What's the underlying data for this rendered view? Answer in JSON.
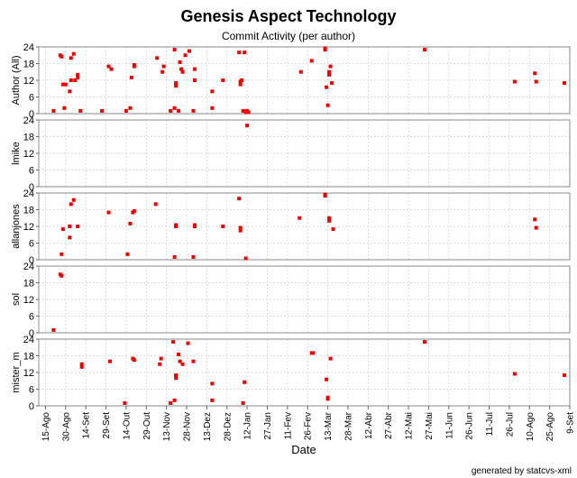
{
  "chart_data": {
    "type": "scatter",
    "title": "Genesis Aspect Technology",
    "subtitle": "Commit Activity (per author)",
    "xlabel": "Date",
    "footer": "generated by statcvs-xml",
    "x_range_days": [
      -5,
      390
    ],
    "x_ticks": [
      {
        "day": 0,
        "label": "15-Ago"
      },
      {
        "day": 15,
        "label": "30-Ago"
      },
      {
        "day": 30,
        "label": "14-Set"
      },
      {
        "day": 45,
        "label": "29-Set"
      },
      {
        "day": 60,
        "label": "14-Out"
      },
      {
        "day": 75,
        "label": "29-Out"
      },
      {
        "day": 90,
        "label": "13-Nov"
      },
      {
        "day": 105,
        "label": "28-Nov"
      },
      {
        "day": 120,
        "label": "13-Dez"
      },
      {
        "day": 135,
        "label": "28-Dez"
      },
      {
        "day": 150,
        "label": "12-Jan"
      },
      {
        "day": 165,
        "label": "27-Jan"
      },
      {
        "day": 180,
        "label": "11-Fev"
      },
      {
        "day": 195,
        "label": "26-Fev"
      },
      {
        "day": 210,
        "label": "13-Mar"
      },
      {
        "day": 225,
        "label": "28-Mar"
      },
      {
        "day": 240,
        "label": "12-Abr"
      },
      {
        "day": 255,
        "label": "27-Abr"
      },
      {
        "day": 270,
        "label": "12-Mai"
      },
      {
        "day": 285,
        "label": "27-Mai"
      },
      {
        "day": 300,
        "label": "11-Jun"
      },
      {
        "day": 315,
        "label": "26-Jun"
      },
      {
        "day": 330,
        "label": "11-Jul"
      },
      {
        "day": 345,
        "label": "26-Jul"
      },
      {
        "day": 360,
        "label": "10-Ago"
      },
      {
        "day": 375,
        "label": "25-Ago"
      },
      {
        "day": 390,
        "label": "9-Set"
      }
    ],
    "y_range": [
      0,
      24
    ],
    "y_ticks": [
      "0",
      "6",
      "12",
      "18",
      "24"
    ],
    "grid": true,
    "point_color": "#ee0000",
    "series": [
      {
        "name": "Author (All)",
        "points": [
          [
            6,
            1
          ],
          [
            11,
            21
          ],
          [
            12,
            20.5
          ],
          [
            13,
            10.5
          ],
          [
            14,
            2
          ],
          [
            15,
            10.5
          ],
          [
            18,
            8
          ],
          [
            19,
            12
          ],
          [
            19,
            20
          ],
          [
            21,
            21.5
          ],
          [
            22,
            12
          ],
          [
            24,
            13
          ],
          [
            24,
            14
          ],
          [
            26,
            1
          ],
          [
            42,
            1
          ],
          [
            47,
            17
          ],
          [
            49,
            16
          ],
          [
            60,
            1
          ],
          [
            63,
            2
          ],
          [
            64,
            13
          ],
          [
            66,
            17
          ],
          [
            66,
            17.5
          ],
          [
            83,
            20
          ],
          [
            87,
            15
          ],
          [
            88,
            17
          ],
          [
            93,
            1
          ],
          [
            96,
            23
          ],
          [
            96,
            2
          ],
          [
            97,
            10
          ],
          [
            97,
            11
          ],
          [
            99,
            1
          ],
          [
            100,
            18.5
          ],
          [
            101,
            16
          ],
          [
            102,
            15
          ],
          [
            104,
            21
          ],
          [
            107,
            22.5
          ],
          [
            110,
            1
          ],
          [
            111,
            12
          ],
          [
            111,
            16
          ],
          [
            124,
            8
          ],
          [
            124,
            2
          ],
          [
            132,
            12
          ],
          [
            144,
            22
          ],
          [
            145,
            10.5
          ],
          [
            145,
            11.5
          ],
          [
            146,
            12
          ],
          [
            147,
            1
          ],
          [
            148,
            22
          ],
          [
            149,
            0.5
          ],
          [
            150,
            1
          ],
          [
            151,
            0.5
          ],
          [
            190,
            15
          ],
          [
            198,
            19
          ],
          [
            208,
            23
          ],
          [
            208,
            23.5
          ],
          [
            209,
            9.5
          ],
          [
            210,
            3
          ],
          [
            211,
            14
          ],
          [
            211,
            15
          ],
          [
            212,
            17
          ],
          [
            213,
            11
          ],
          [
            282,
            23
          ],
          [
            349,
            11.5
          ],
          [
            364,
            14.5
          ],
          [
            365,
            11.5
          ],
          [
            386,
            11
          ]
        ]
      },
      {
        "name": "lmike",
        "points": [
          [
            150,
            22
          ]
        ]
      },
      {
        "name": "allanjones",
        "points": [
          [
            12,
            2
          ],
          [
            13,
            11
          ],
          [
            18,
            8
          ],
          [
            18,
            12
          ],
          [
            19,
            20
          ],
          [
            21,
            21.5
          ],
          [
            24,
            12
          ],
          [
            47,
            17
          ],
          [
            61,
            2
          ],
          [
            63,
            13
          ],
          [
            65,
            17
          ],
          [
            66,
            17.5
          ],
          [
            82,
            20
          ],
          [
            96,
            1
          ],
          [
            97,
            12
          ],
          [
            97,
            12.5
          ],
          [
            110,
            1
          ],
          [
            111,
            12
          ],
          [
            111,
            12.5
          ],
          [
            132,
            12
          ],
          [
            144,
            22
          ],
          [
            145,
            11.5
          ],
          [
            145,
            10.5
          ],
          [
            149,
            0.5
          ],
          [
            189,
            15
          ],
          [
            208,
            23
          ],
          [
            208,
            23.5
          ],
          [
            211,
            14
          ],
          [
            211,
            15
          ],
          [
            214,
            11
          ],
          [
            364,
            14.5
          ],
          [
            365,
            11.5
          ]
        ]
      },
      {
        "name": "sol",
        "points": [
          [
            6,
            1
          ],
          [
            11,
            21
          ],
          [
            12,
            20.5
          ]
        ]
      },
      {
        "name": "mister_m",
        "points": [
          [
            27,
            14
          ],
          [
            27,
            15
          ],
          [
            48,
            16
          ],
          [
            59,
            1
          ],
          [
            65,
            17
          ],
          [
            66,
            16.5
          ],
          [
            85,
            15
          ],
          [
            86,
            17
          ],
          [
            93,
            1
          ],
          [
            95,
            23
          ],
          [
            96,
            2
          ],
          [
            97,
            10
          ],
          [
            97,
            11
          ],
          [
            99,
            18.5
          ],
          [
            100,
            16
          ],
          [
            102,
            15
          ],
          [
            106,
            22.5
          ],
          [
            110,
            16
          ],
          [
            124,
            8
          ],
          [
            124,
            2
          ],
          [
            147,
            1
          ],
          [
            148,
            8.5
          ],
          [
            198,
            19
          ],
          [
            199,
            19
          ],
          [
            209,
            9.5
          ],
          [
            210,
            3
          ],
          [
            210,
            2.5
          ],
          [
            212,
            17
          ],
          [
            282,
            23
          ],
          [
            349,
            11.5
          ],
          [
            386,
            11
          ]
        ]
      }
    ]
  }
}
